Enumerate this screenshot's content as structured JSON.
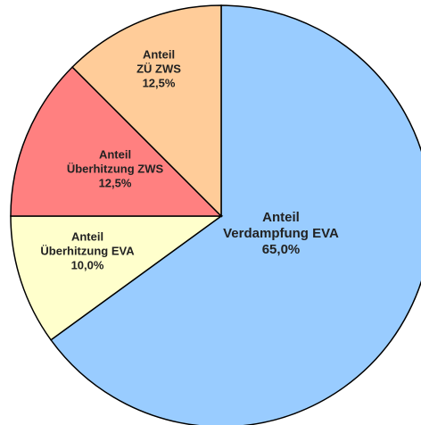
{
  "chart_data": {
    "type": "pie",
    "categories": [
      [
        "Anteil",
        "Verdampfung EVA"
      ],
      [
        "Anteil",
        "Überhitzung EVA"
      ],
      [
        "Anteil",
        "Überhitzung ZWS"
      ],
      [
        "Anteil",
        "ZÜ ZWS"
      ]
    ],
    "values": [
      65.0,
      10.0,
      12.5,
      12.5
    ],
    "value_labels": [
      "65,0%",
      "10,0%",
      "12,5%",
      "12,5%"
    ],
    "colors": [
      "#99ccff",
      "#ffffcc",
      "#ff8080",
      "#ffcc99"
    ]
  }
}
